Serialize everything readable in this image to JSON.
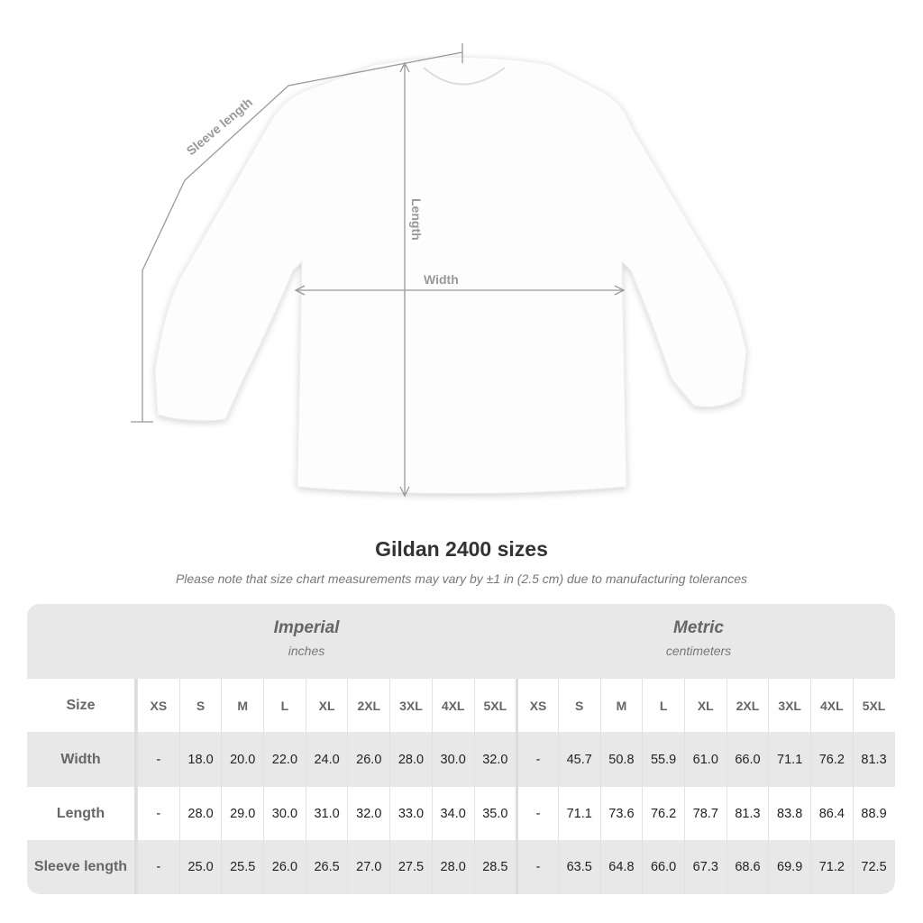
{
  "diagram": {
    "sleeve_label": "Sleeve length",
    "length_label": "Length",
    "width_label": "Width"
  },
  "title": "Gildan 2400 sizes",
  "note": "Please note that size chart measurements may vary by ±1 in (2.5 cm) due to manufacturing tolerances",
  "imperial": {
    "name": "Imperial",
    "unit": "inches"
  },
  "metric": {
    "name": "Metric",
    "unit": "centimeters"
  },
  "size_label": "Size",
  "sizes": [
    "XS",
    "S",
    "M",
    "L",
    "XL",
    "2XL",
    "3XL",
    "4XL",
    "5XL"
  ],
  "rows": [
    {
      "label": "Width",
      "imperial": [
        "-",
        "18.0",
        "20.0",
        "22.0",
        "24.0",
        "26.0",
        "28.0",
        "30.0",
        "32.0"
      ],
      "metric": [
        "-",
        "45.7",
        "50.8",
        "55.9",
        "61.0",
        "66.0",
        "71.1",
        "76.2",
        "81.3"
      ]
    },
    {
      "label": "Length",
      "imperial": [
        "-",
        "28.0",
        "29.0",
        "30.0",
        "31.0",
        "32.0",
        "33.0",
        "34.0",
        "35.0"
      ],
      "metric": [
        "-",
        "71.1",
        "73.6",
        "76.2",
        "78.7",
        "81.3",
        "83.8",
        "86.4",
        "88.9"
      ]
    },
    {
      "label": "Sleeve length",
      "imperial": [
        "-",
        "25.0",
        "25.5",
        "26.0",
        "26.5",
        "27.0",
        "27.5",
        "28.0",
        "28.5"
      ],
      "metric": [
        "-",
        "63.5",
        "64.8",
        "66.0",
        "67.3",
        "68.6",
        "69.9",
        "71.2",
        "72.5"
      ]
    }
  ]
}
